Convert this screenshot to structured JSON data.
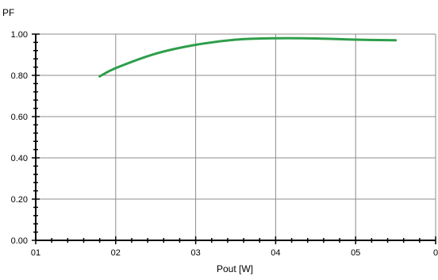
{
  "chart_data": {
    "type": "line",
    "ylabel": "PF",
    "xlabel": "Pout [W]",
    "x_tick_labels": [
      "01",
      "02",
      "03",
      "04",
      "05",
      "0"
    ],
    "y_tick_labels": [
      "0.00",
      "0.20",
      "0.40",
      "0.60",
      "0.80",
      "1.00"
    ],
    "xlim": [
      1,
      6
    ],
    "ylim": [
      0,
      1
    ],
    "grid": true,
    "legend": "none",
    "series": [
      {
        "color": "#2e9e4a",
        "x": [
          1.8,
          2.0,
          2.5,
          3.0,
          3.5,
          4.0,
          4.5,
          5.0,
          5.5
        ],
        "y": [
          0.795,
          0.835,
          0.905,
          0.948,
          0.973,
          0.98,
          0.979,
          0.973,
          0.97
        ]
      }
    ]
  }
}
